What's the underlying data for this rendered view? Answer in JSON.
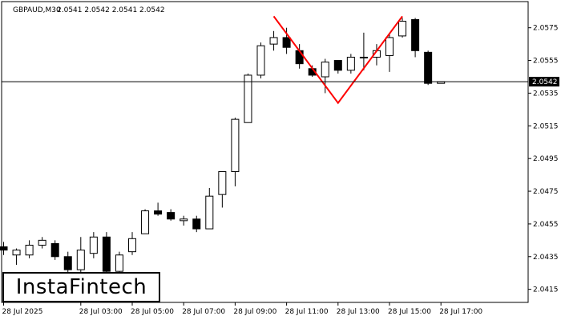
{
  "header": {
    "symbol": "GBPAUD,M30",
    "ohlc": "2.0541 2.0542 2.0541 2.0542"
  },
  "logo": {
    "text": "InstaFintech"
  },
  "current_price_label": "2.0542",
  "colors": {
    "pattern": "#ff0000",
    "bull_body": "#ffffff",
    "bear_body": "#000000",
    "price_tag_bg": "#000000"
  },
  "chart_data": {
    "type": "candlestick",
    "title": "",
    "ylim": [
      2.0407,
      2.0591
    ],
    "current_price": 2.0542,
    "y_ticks": [
      "2.0575",
      "2.0555",
      "2.0535",
      "2.0515",
      "2.0495",
      "2.0475",
      "2.0455",
      "2.0435",
      "2.0415"
    ],
    "y_tick_values": [
      2.0575,
      2.0555,
      2.0535,
      2.0515,
      2.0495,
      2.0475,
      2.0455,
      2.0435,
      2.0415
    ],
    "x_ticks": [
      {
        "label": "28 Jul 2025",
        "index": 0
      },
      {
        "label": "28 Jul 03:00",
        "index": 6
      },
      {
        "label": "28 Jul 05:00",
        "index": 10
      },
      {
        "label": "28 Jul 07:00",
        "index": 14
      },
      {
        "label": "28 Jul 09:00",
        "index": 18
      },
      {
        "label": "28 Jul 11:00",
        "index": 22
      },
      {
        "label": "28 Jul 13:00",
        "index": 26
      },
      {
        "label": "28 Jul 15:00",
        "index": 30
      },
      {
        "label": "28 Jul 17:00",
        "index": 34
      }
    ],
    "candles": [
      {
        "o": 2.0441,
        "h": 2.0444,
        "l": 2.0436,
        "c": 2.0439
      },
      {
        "o": 2.0436,
        "h": 2.044,
        "l": 2.043,
        "c": 2.0439
      },
      {
        "o": 2.0436,
        "h": 2.0445,
        "l": 2.0434,
        "c": 2.0442
      },
      {
        "o": 2.0442,
        "h": 2.0447,
        "l": 2.044,
        "c": 2.0445
      },
      {
        "o": 2.0443,
        "h": 2.0445,
        "l": 2.0433,
        "c": 2.0435
      },
      {
        "o": 2.0435,
        "h": 2.0438,
        "l": 2.0422,
        "c": 2.0427
      },
      {
        "o": 2.0427,
        "h": 2.0447,
        "l": 2.0425,
        "c": 2.0439
      },
      {
        "o": 2.0437,
        "h": 2.045,
        "l": 2.0434,
        "c": 2.0447
      },
      {
        "o": 2.0447,
        "h": 2.045,
        "l": 2.0422,
        "c": 2.0426
      },
      {
        "o": 2.0426,
        "h": 2.0438,
        "l": 2.0424,
        "c": 2.0436
      },
      {
        "o": 2.0438,
        "h": 2.045,
        "l": 2.0436,
        "c": 2.0446
      },
      {
        "o": 2.0449,
        "h": 2.0464,
        "l": 2.0449,
        "c": 2.0463
      },
      {
        "o": 2.0463,
        "h": 2.0468,
        "l": 2.046,
        "c": 2.0461
      },
      {
        "o": 2.0462,
        "h": 2.0464,
        "l": 2.0457,
        "c": 2.0458
      },
      {
        "o": 2.0457,
        "h": 2.046,
        "l": 2.0454,
        "c": 2.0458
      },
      {
        "o": 2.0458,
        "h": 2.046,
        "l": 2.045,
        "c": 2.0452
      },
      {
        "o": 2.0452,
        "h": 2.0477,
        "l": 2.0452,
        "c": 2.0472
      },
      {
        "o": 2.0473,
        "h": 2.0487,
        "l": 2.0465,
        "c": 2.0487
      },
      {
        "o": 2.0487,
        "h": 2.052,
        "l": 2.0478,
        "c": 2.0519
      },
      {
        "o": 2.0517,
        "h": 2.0547,
        "l": 2.0517,
        "c": 2.0546
      },
      {
        "o": 2.0546,
        "h": 2.0566,
        "l": 2.0544,
        "c": 2.0564
      },
      {
        "o": 2.0565,
        "h": 2.0573,
        "l": 2.0561,
        "c": 2.0569
      },
      {
        "o": 2.0569,
        "h": 2.0575,
        "l": 2.0559,
        "c": 2.0563
      },
      {
        "o": 2.0561,
        "h": 2.0565,
        "l": 2.055,
        "c": 2.0553
      },
      {
        "o": 2.055,
        "h": 2.0552,
        "l": 2.0545,
        "c": 2.0546
      },
      {
        "o": 2.0545,
        "h": 2.0556,
        "l": 2.0535,
        "c": 2.0554
      },
      {
        "o": 2.0555,
        "h": 2.0555,
        "l": 2.0547,
        "c": 2.0549
      },
      {
        "o": 2.0549,
        "h": 2.0559,
        "l": 2.0547,
        "c": 2.0557
      },
      {
        "o": 2.0557,
        "h": 2.0572,
        "l": 2.0549,
        "c": 2.0557
      },
      {
        "o": 2.0557,
        "h": 2.0565,
        "l": 2.0552,
        "c": 2.0561
      },
      {
        "o": 2.0558,
        "h": 2.0571,
        "l": 2.0548,
        "c": 2.0569
      },
      {
        "o": 2.057,
        "h": 2.0581,
        "l": 2.0569,
        "c": 2.0579
      },
      {
        "o": 2.058,
        "h": 2.0581,
        "l": 2.0557,
        "c": 2.0561
      },
      {
        "o": 2.056,
        "h": 2.0561,
        "l": 2.054,
        "c": 2.0541
      },
      {
        "o": 2.0541,
        "h": 2.0542,
        "l": 2.0541,
        "c": 2.0542
      }
    ],
    "pattern_overlay": {
      "name": "double top",
      "points": [
        {
          "index": 21,
          "price": 2.0582
        },
        {
          "index": 26,
          "price": 2.0529
        },
        {
          "index": 31,
          "price": 2.0582
        }
      ]
    }
  }
}
